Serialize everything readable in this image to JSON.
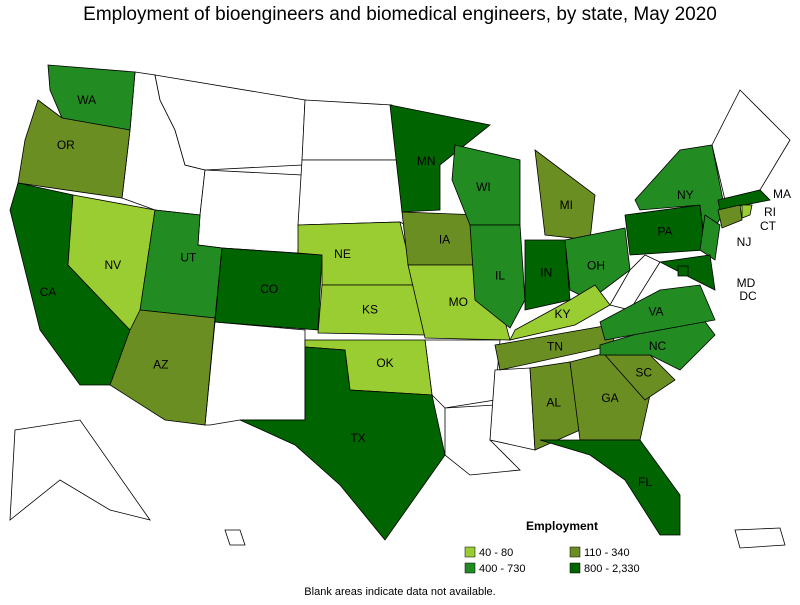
{
  "title": "Employment of bioengineers and biomedical engineers, by state, May 2020",
  "legend": {
    "title": "Employment",
    "items": [
      {
        "label": "40 - 80",
        "color": "#9acd32"
      },
      {
        "label": "110 - 340",
        "color": "#6b8e23"
      },
      {
        "label": "400 - 730",
        "color": "#228b22"
      },
      {
        "label": "800 - 2,330",
        "color": "#006400"
      }
    ]
  },
  "states": [
    {
      "label": "WA",
      "class": 2
    },
    {
      "label": "OR",
      "class": 1
    },
    {
      "label": "CA",
      "class": 3
    },
    {
      "label": "NV",
      "class": 0
    },
    {
      "label": "UT",
      "class": 2
    },
    {
      "label": "AZ",
      "class": 1
    },
    {
      "label": "CO",
      "class": 3
    },
    {
      "label": "NE",
      "class": 0
    },
    {
      "label": "KS",
      "class": 0
    },
    {
      "label": "OK",
      "class": 0
    },
    {
      "label": "TX",
      "class": 3
    },
    {
      "label": "MN",
      "class": 3
    },
    {
      "label": "IA",
      "class": 1
    },
    {
      "label": "MO",
      "class": 0
    },
    {
      "label": "WI",
      "class": 2
    },
    {
      "label": "IL",
      "class": 2
    },
    {
      "label": "MI",
      "class": 1
    },
    {
      "label": "IN",
      "class": 3
    },
    {
      "label": "OH",
      "class": 2
    },
    {
      "label": "KY",
      "class": 0
    },
    {
      "label": "TN",
      "class": 1
    },
    {
      "label": "AL",
      "class": 1
    },
    {
      "label": "GA",
      "class": 1
    },
    {
      "label": "SC",
      "class": 1
    },
    {
      "label": "NC",
      "class": 2
    },
    {
      "label": "VA",
      "class": 2
    },
    {
      "label": "FL",
      "class": 3
    },
    {
      "label": "PA",
      "class": 3
    },
    {
      "label": "NY",
      "class": 2
    },
    {
      "label": "NJ",
      "class": 2
    },
    {
      "label": "MD",
      "class": 3
    },
    {
      "label": "DC",
      "class": 3
    },
    {
      "label": "MA",
      "class": 3
    },
    {
      "label": "CT",
      "class": 1
    },
    {
      "label": "RI",
      "class": 0
    }
  ],
  "note": "Blank areas indicate data not available."
}
